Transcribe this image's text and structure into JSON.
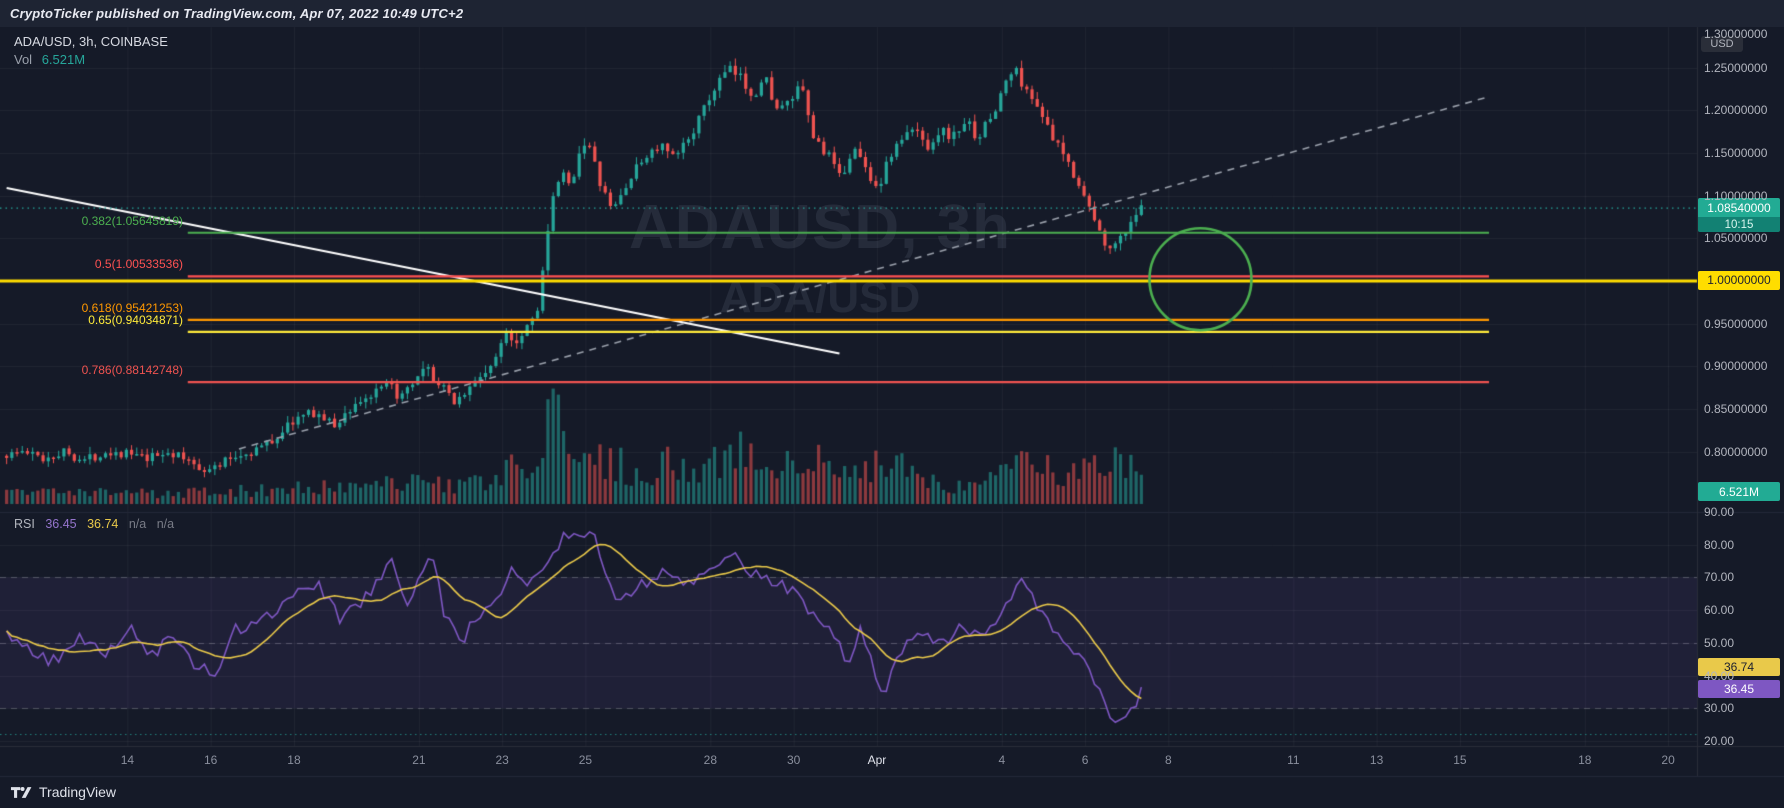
{
  "meta": {
    "published_line": "CryptoTicker published on TradingView.com, Apr 07, 2022 10:49 UTC+2"
  },
  "header": {
    "symbol_title": "ADA/USD, 3h, COINBASE",
    "vol_label": "Vol",
    "vol_value": "6.521M"
  },
  "watermark": {
    "line1": "ADAUSD, 3h",
    "line2": "ADA/USD"
  },
  "rsi_legend": {
    "title": "RSI",
    "value": "36.45",
    "ma": "36.74",
    "na1": "n/a",
    "na2": "n/a"
  },
  "price_axis": {
    "unit": "USD",
    "labels": [
      {
        "text": "1.30000000",
        "price": 1.3
      },
      {
        "text": "1.25000000",
        "price": 1.25
      },
      {
        "text": "1.20000000",
        "price": 1.2
      },
      {
        "text": "1.15000000",
        "price": 1.15
      },
      {
        "text": "1.10000000",
        "price": 1.1
      },
      {
        "text": "1.05000000",
        "price": 1.05
      },
      {
        "text": "0.95000000",
        "price": 0.95
      },
      {
        "text": "0.90000000",
        "price": 0.9
      },
      {
        "text": "0.85000000",
        "price": 0.85
      },
      {
        "text": "0.80000000",
        "price": 0.8
      }
    ],
    "current_price_badge": {
      "text": "1.08540000",
      "countdown": "10:15"
    },
    "level_badge": {
      "text": "1.00000000",
      "price": 1.0
    },
    "volume_badge": "6.521M"
  },
  "rsi_axis": {
    "labels": [
      {
        "text": "90.00",
        "value": 90
      },
      {
        "text": "80.00",
        "value": 80
      },
      {
        "text": "70.00",
        "value": 70
      },
      {
        "text": "60.00",
        "value": 60
      },
      {
        "text": "50.00",
        "value": 50
      },
      {
        "text": "40.00",
        "value": 40
      },
      {
        "text": "30.00",
        "value": 30
      },
      {
        "text": "20.00",
        "value": 20
      }
    ],
    "ma_badge": {
      "text": "36.74",
      "value": 36.74
    },
    "value_badge": {
      "text": "36.45",
      "value": 36.45
    }
  },
  "time_axis": {
    "labels": [
      {
        "text": "14",
        "day": 0
      },
      {
        "text": "16",
        "day": 2
      },
      {
        "text": "18",
        "day": 4
      },
      {
        "text": "21",
        "day": 7
      },
      {
        "text": "23",
        "day": 9
      },
      {
        "text": "25",
        "day": 11
      },
      {
        "text": "28",
        "day": 14
      },
      {
        "text": "30",
        "day": 16
      },
      {
        "text": "Apr",
        "day": 18,
        "major": true
      },
      {
        "text": "4",
        "day": 21
      },
      {
        "text": "6",
        "day": 23
      },
      {
        "text": "8",
        "day": 25
      },
      {
        "text": "11",
        "day": 28
      },
      {
        "text": "13",
        "day": 30
      },
      {
        "text": "15",
        "day": 32
      },
      {
        "text": "18",
        "day": 35
      },
      {
        "text": "20",
        "day": 37
      }
    ]
  },
  "footer": {
    "brand": "TradingView"
  },
  "colors": {
    "background": "#151a28",
    "topbar": "#1e2433",
    "up": "#26a69a",
    "down": "#ef5350",
    "up_vol": "rgba(38,166,154,0.55)",
    "down_vol": "rgba(239,83,80,0.55)",
    "axis_text": "#b2b5be",
    "rsi_line": "#7e57c2",
    "rsi_ma": "#e9c94a",
    "level_yellow": "#ffdd00",
    "accent_teal": "#22ab94",
    "trend_white": "#ffffff",
    "trend_dashed": "#9aa0ab",
    "circle_green": "#4caf50",
    "separator": "#2a2e39",
    "grid": "rgba(255,255,255,0.05)"
  },
  "chart_data": {
    "type": "candlestick",
    "symbol": "ADA/USD",
    "interval": "3h",
    "exchange": "COINBASE",
    "title_watermark": "ADAUSD, 3h",
    "visible_price_range": [
      0.8,
      1.3
    ],
    "time_range": "Mar 11 - Apr 20 (day 0 = Mar 14)",
    "current_price": 1.0854,
    "current_volume_label": "6.521M",
    "candles": {
      "start_day": -2.9,
      "end_day": 24.45,
      "interval_days": 0.125
    },
    "price_path": [
      [
        -2.9,
        0.795
      ],
      [
        -2.4,
        0.8
      ],
      [
        -1.9,
        0.792
      ],
      [
        -1.4,
        0.8
      ],
      [
        -0.9,
        0.79
      ],
      [
        -0.4,
        0.8
      ],
      [
        0.1,
        0.798
      ],
      [
        0.6,
        0.79
      ],
      [
        1.1,
        0.8
      ],
      [
        1.6,
        0.788
      ],
      [
        2.1,
        0.778
      ],
      [
        2.6,
        0.792
      ],
      [
        3.1,
        0.8
      ],
      [
        3.6,
        0.812
      ],
      [
        4.1,
        0.836
      ],
      [
        4.6,
        0.846
      ],
      [
        5.1,
        0.83
      ],
      [
        5.6,
        0.856
      ],
      [
        6.1,
        0.868
      ],
      [
        6.4,
        0.878
      ],
      [
        6.7,
        0.862
      ],
      [
        7.0,
        0.878
      ],
      [
        7.3,
        0.897
      ],
      [
        7.6,
        0.878
      ],
      [
        8.0,
        0.859
      ],
      [
        8.3,
        0.872
      ],
      [
        8.6,
        0.888
      ],
      [
        9.0,
        0.908
      ],
      [
        9.2,
        0.944
      ],
      [
        9.45,
        0.928
      ],
      [
        9.7,
        0.948
      ],
      [
        9.95,
        0.962
      ],
      [
        10.15,
        1.03
      ],
      [
        10.35,
        1.095
      ],
      [
        10.55,
        1.128
      ],
      [
        10.75,
        1.108
      ],
      [
        10.95,
        1.148
      ],
      [
        11.15,
        1.168
      ],
      [
        11.45,
        1.118
      ],
      [
        11.75,
        1.082
      ],
      [
        12.0,
        1.102
      ],
      [
        12.3,
        1.128
      ],
      [
        12.6,
        1.148
      ],
      [
        12.95,
        1.158
      ],
      [
        13.25,
        1.142
      ],
      [
        13.6,
        1.168
      ],
      [
        13.95,
        1.198
      ],
      [
        14.25,
        1.228
      ],
      [
        14.55,
        1.248
      ],
      [
        14.85,
        1.238
      ],
      [
        15.15,
        1.218
      ],
      [
        15.45,
        1.238
      ],
      [
        15.75,
        1.198
      ],
      [
        16.0,
        1.208
      ],
      [
        16.3,
        1.228
      ],
      [
        16.6,
        1.168
      ],
      [
        16.95,
        1.148
      ],
      [
        17.25,
        1.118
      ],
      [
        17.55,
        1.158
      ],
      [
        17.9,
        1.128
      ],
      [
        18.15,
        1.108
      ],
      [
        18.45,
        1.148
      ],
      [
        18.75,
        1.168
      ],
      [
        19.05,
        1.178
      ],
      [
        19.35,
        1.158
      ],
      [
        19.65,
        1.178
      ],
      [
        19.95,
        1.168
      ],
      [
        20.25,
        1.188
      ],
      [
        20.55,
        1.168
      ],
      [
        20.95,
        1.198
      ],
      [
        21.25,
        1.238
      ],
      [
        21.45,
        1.248
      ],
      [
        21.75,
        1.218
      ],
      [
        22.0,
        1.208
      ],
      [
        22.3,
        1.168
      ],
      [
        22.6,
        1.148
      ],
      [
        22.95,
        1.118
      ],
      [
        23.25,
        1.082
      ],
      [
        23.55,
        1.048
      ],
      [
        23.85,
        1.04
      ],
      [
        24.05,
        1.058
      ],
      [
        24.25,
        1.072
      ],
      [
        24.45,
        1.0854
      ]
    ],
    "volume_path": [
      [
        -2.9,
        0.1
      ],
      [
        0,
        0.1
      ],
      [
        2,
        0.12
      ],
      [
        4,
        0.14
      ],
      [
        6,
        0.16
      ],
      [
        7,
        0.2
      ],
      [
        8,
        0.15
      ],
      [
        9,
        0.22
      ],
      [
        9.3,
        0.5
      ],
      [
        9.6,
        0.3
      ],
      [
        10,
        0.35
      ],
      [
        10.2,
        1.0
      ],
      [
        10.4,
        0.55
      ],
      [
        10.8,
        0.45
      ],
      [
        11,
        0.5
      ],
      [
        11.5,
        0.4
      ],
      [
        12,
        0.32
      ],
      [
        12.5,
        0.3
      ],
      [
        13,
        0.36
      ],
      [
        13.5,
        0.3
      ],
      [
        14,
        0.42
      ],
      [
        14.6,
        0.5
      ],
      [
        15,
        0.38
      ],
      [
        15.5,
        0.3
      ],
      [
        16,
        0.34
      ],
      [
        16.6,
        0.38
      ],
      [
        17,
        0.28
      ],
      [
        17.5,
        0.24
      ],
      [
        18,
        0.34
      ],
      [
        18.3,
        0.4
      ],
      [
        19,
        0.22
      ],
      [
        19.5,
        0.18
      ],
      [
        20,
        0.2
      ],
      [
        20.5,
        0.18
      ],
      [
        21,
        0.32
      ],
      [
        21.5,
        0.45
      ],
      [
        22,
        0.32
      ],
      [
        22.5,
        0.26
      ],
      [
        23,
        0.3
      ],
      [
        23.5,
        0.38
      ],
      [
        24,
        0.32
      ],
      [
        24.45,
        0.26
      ]
    ],
    "rsi": {
      "last": 36.45,
      "ma_last": 36.74,
      "upper_band": 70,
      "middle_band": 50,
      "lower_band": 30,
      "dotted_level": 22,
      "path": [
        [
          -2.9,
          52
        ],
        [
          -2.3,
          47
        ],
        [
          -1.7,
          44
        ],
        [
          -1.1,
          52
        ],
        [
          -0.5,
          47
        ],
        [
          0.1,
          55
        ],
        [
          0.6,
          46
        ],
        [
          1.1,
          52
        ],
        [
          1.6,
          43
        ],
        [
          2.1,
          41
        ],
        [
          2.6,
          54
        ],
        [
          3.1,
          57
        ],
        [
          3.6,
          60
        ],
        [
          4.1,
          65
        ],
        [
          4.6,
          68
        ],
        [
          5.1,
          57
        ],
        [
          5.6,
          62
        ],
        [
          6.1,
          70
        ],
        [
          6.4,
          75
        ],
        [
          6.7,
          61
        ],
        [
          7.0,
          71
        ],
        [
          7.3,
          79
        ],
        [
          7.6,
          60
        ],
        [
          8.0,
          50
        ],
        [
          8.3,
          56
        ],
        [
          8.6,
          62
        ],
        [
          9.0,
          66
        ],
        [
          9.2,
          74
        ],
        [
          9.45,
          67
        ],
        [
          9.7,
          71
        ],
        [
          10.0,
          74
        ],
        [
          10.2,
          79
        ],
        [
          10.5,
          82
        ],
        [
          11.0,
          84
        ],
        [
          11.2,
          85
        ],
        [
          11.5,
          71
        ],
        [
          11.8,
          61
        ],
        [
          12.0,
          65
        ],
        [
          12.5,
          69
        ],
        [
          13.0,
          72
        ],
        [
          13.5,
          67
        ],
        [
          14.0,
          73
        ],
        [
          14.6,
          78
        ],
        [
          15.0,
          71
        ],
        [
          15.5,
          69
        ],
        [
          16.0,
          65
        ],
        [
          16.5,
          59
        ],
        [
          17.0,
          51
        ],
        [
          17.3,
          44
        ],
        [
          17.6,
          54
        ],
        [
          18.0,
          40
        ],
        [
          18.2,
          33
        ],
        [
          18.5,
          47
        ],
        [
          19.0,
          55
        ],
        [
          19.5,
          49
        ],
        [
          20.0,
          54
        ],
        [
          20.5,
          51
        ],
        [
          21.0,
          59
        ],
        [
          21.3,
          67
        ],
        [
          21.5,
          71
        ],
        [
          22.0,
          57
        ],
        [
          22.5,
          51
        ],
        [
          23.0,
          44
        ],
        [
          23.3,
          37
        ],
        [
          23.6,
          29
        ],
        [
          23.9,
          25
        ],
        [
          24.1,
          29
        ],
        [
          24.45,
          36.45
        ]
      ]
    },
    "fib_levels": [
      {
        "label": "0.382(1.05645819)",
        "price": 1.05645819,
        "color": "#4caf50"
      },
      {
        "label": "0.5(1.00533536)",
        "price": 1.00533536,
        "color": "#ff5252"
      },
      {
        "label": "0.618(0.95421253)",
        "price": 0.95421253,
        "color": "#ff9800"
      },
      {
        "label": "0.65(0.94034871)",
        "price": 0.94034871,
        "color": "#ffeb3b"
      },
      {
        "label": "0.786(0.88142748)",
        "price": 0.88142748,
        "color": "#ef5350"
      }
    ],
    "fib_extent_days": [
      1.45,
      32.7
    ],
    "level_line": {
      "price": 1.0,
      "color": "#ffdd00"
    },
    "current_price_line": {
      "price": 1.0854,
      "color": "#26a69a",
      "style": "dotted"
    },
    "trendlines": [
      {
        "style": "solid",
        "color": "#ffffff",
        "from": {
          "day": -2.9,
          "price": 1.109
        },
        "to": {
          "day": 17.1,
          "price": 0.915
        }
      },
      {
        "style": "dashed",
        "color": "#9aa0ab",
        "from": {
          "day": 2.68,
          "price": 0.803
        },
        "to": {
          "day": 32.7,
          "price": 1.216
        }
      }
    ],
    "circle_annotation": {
      "day": 25.77,
      "price": 1.002,
      "radius_px": 51,
      "color": "#4caf50"
    }
  }
}
